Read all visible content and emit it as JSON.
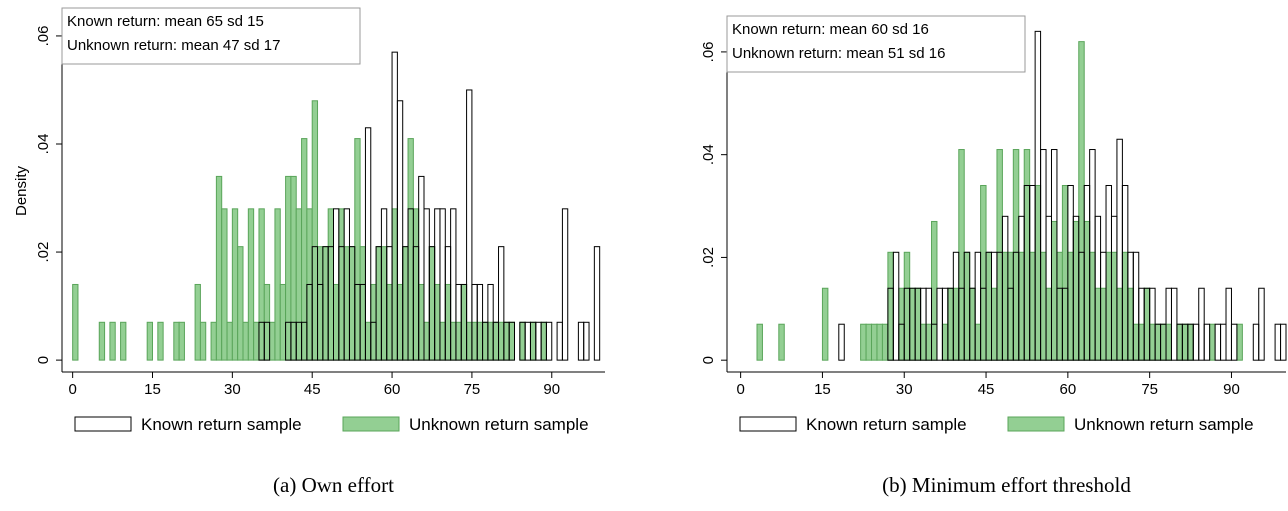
{
  "chart_data": [
    {
      "type": "histogram",
      "caption": "(a) Own effort",
      "y_label": "Density",
      "annotation": [
        "Known return: mean 65 sd 15",
        "Unknown return: mean 47 sd 17"
      ],
      "bins": [
        0,
        1,
        2,
        3,
        4,
        5,
        6,
        7,
        8,
        9,
        10,
        11,
        12,
        13,
        14,
        15,
        16,
        17,
        18,
        19,
        20,
        21,
        22,
        23,
        24,
        25,
        26,
        27,
        28,
        29,
        30,
        31,
        32,
        33,
        34,
        35,
        36,
        37,
        38,
        39,
        40,
        41,
        42,
        43,
        44,
        45,
        46,
        47,
        48,
        49,
        50,
        51,
        52,
        53,
        54,
        55,
        56,
        57,
        58,
        59,
        60,
        61,
        62,
        63,
        64,
        65,
        66,
        67,
        68,
        69,
        70,
        71,
        72,
        73,
        74,
        75,
        76,
        77,
        78,
        79,
        80,
        81,
        82,
        83,
        84,
        85,
        86,
        87,
        88,
        89,
        90,
        91,
        92,
        93,
        94,
        95,
        96,
        97,
        98,
        99,
        100
      ],
      "xlim": [
        -2,
        100
      ],
      "xticks": [
        0,
        15,
        30,
        45,
        60,
        75,
        90
      ],
      "ylim": [
        -0.0022,
        0.0648
      ],
      "yticks": [
        0,
        {
          "value": 0.02,
          "label": ".02"
        },
        {
          "value": 0.04,
          "label": ".04"
        },
        {
          "value": 0.06,
          "label": ".06"
        }
      ],
      "series": [
        {
          "name": "Unknown return sample",
          "color": "#93cf93",
          "edgecolor": "#5aa55a",
          "values": [
            0.014,
            0,
            0,
            0,
            0,
            0.007,
            0,
            0.007,
            0,
            0.007,
            0,
            0,
            0,
            0,
            0.007,
            0,
            0.007,
            0,
            0,
            0.007,
            0.007,
            0,
            0,
            0.014,
            0.007,
            0,
            0.007,
            0.034,
            0.028,
            0.007,
            0.028,
            0.021,
            0.007,
            0.028,
            0.007,
            0.028,
            0.014,
            0.007,
            0.028,
            0.014,
            0.034,
            0.034,
            0.028,
            0.041,
            0.028,
            0.048,
            0.021,
            0.021,
            0.028,
            0.014,
            0.028,
            0.021,
            0.021,
            0.041,
            0.021,
            0.007,
            0.014,
            0.021,
            0.021,
            0.014,
            0.028,
            0.014,
            0.021,
            0.041,
            0.028,
            0.014,
            0.007,
            0.021,
            0.014,
            0.007,
            0.014,
            0.007,
            0.007,
            0.014,
            0.007,
            0.007,
            0.007,
            0.007,
            0.007,
            0.007,
            0.007,
            0.007,
            0.007,
            0,
            0.007,
            0,
            0.007,
            0,
            0.007,
            0,
            0,
            0,
            0,
            0,
            0,
            0,
            0,
            0,
            0,
            0
          ]
        },
        {
          "name": "Known return sample",
          "color": "none",
          "edgecolor": "#000000",
          "values": [
            0,
            0,
            0,
            0,
            0,
            0,
            0,
            0,
            0,
            0,
            0,
            0,
            0,
            0,
            0,
            0,
            0,
            0,
            0,
            0,
            0,
            0,
            0,
            0,
            0,
            0,
            0,
            0,
            0,
            0,
            0,
            0,
            0,
            0,
            0,
            0.007,
            0.007,
            0,
            0,
            0,
            0.007,
            0.007,
            0.007,
            0.007,
            0.014,
            0.021,
            0.014,
            0.021,
            0.021,
            0.028,
            0.021,
            0.028,
            0.021,
            0.014,
            0.014,
            0.043,
            0.007,
            0.021,
            0.028,
            0.021,
            0.057,
            0.048,
            0.021,
            0.028,
            0.021,
            0.034,
            0.028,
            0.021,
            0.028,
            0.028,
            0.021,
            0.028,
            0.014,
            0.014,
            0.05,
            0.014,
            0.014,
            0.007,
            0.014,
            0.007,
            0.021,
            0.007,
            0.007,
            0,
            0.007,
            0.007,
            0.007,
            0.007,
            0.007,
            0.007,
            0,
            0.007,
            0.028,
            0,
            0,
            0.007,
            0.007,
            0,
            0.021,
            0
          ]
        }
      ]
    },
    {
      "type": "histogram",
      "caption": "(b) Minimum effort threshold",
      "annotation": [
        "Known return: mean 60 sd 16",
        "Unknown return: mean 51 sd 16"
      ],
      "bins": [
        0,
        1,
        2,
        3,
        4,
        5,
        6,
        7,
        8,
        9,
        10,
        11,
        12,
        13,
        14,
        15,
        16,
        17,
        18,
        19,
        20,
        21,
        22,
        23,
        24,
        25,
        26,
        27,
        28,
        29,
        30,
        31,
        32,
        33,
        34,
        35,
        36,
        37,
        38,
        39,
        40,
        41,
        42,
        43,
        44,
        45,
        46,
        47,
        48,
        49,
        50,
        51,
        52,
        53,
        54,
        55,
        56,
        57,
        58,
        59,
        60,
        61,
        62,
        63,
        64,
        65,
        66,
        67,
        68,
        69,
        70,
        71,
        72,
        73,
        74,
        75,
        76,
        77,
        78,
        79,
        80,
        81,
        82,
        83,
        84,
        85,
        86,
        87,
        88,
        89,
        90,
        91,
        92,
        93,
        94,
        95,
        96,
        97,
        98,
        99,
        100
      ],
      "xlim": [
        -2.5,
        100
      ],
      "xticks": [
        0,
        15,
        30,
        45,
        60,
        75,
        90
      ],
      "ylim": [
        -0.0023,
        0.0666
      ],
      "yticks": [
        0,
        {
          "value": 0.02,
          "label": ".02"
        },
        {
          "value": 0.04,
          "label": ".04"
        },
        {
          "value": 0.06,
          "label": ".06"
        }
      ],
      "series": [
        {
          "name": "Unknown return sample",
          "color": "#93cf93",
          "edgecolor": "#5aa55a",
          "values": [
            0,
            0,
            0,
            0.007,
            0,
            0,
            0,
            0.007,
            0,
            0,
            0,
            0,
            0,
            0,
            0,
            0.014,
            0,
            0,
            0,
            0,
            0,
            0,
            0.007,
            0.007,
            0.007,
            0.007,
            0.007,
            0.021,
            0,
            0.014,
            0.021,
            0.014,
            0.014,
            0.007,
            0.007,
            0.027,
            0,
            0.007,
            0.014,
            0.014,
            0.041,
            0.021,
            0.014,
            0.007,
            0.034,
            0.021,
            0.014,
            0.041,
            0.021,
            0.021,
            0.041,
            0.021,
            0.041,
            0.021,
            0.034,
            0.021,
            0.014,
            0.027,
            0.021,
            0.034,
            0.021,
            0.027,
            0.062,
            0.027,
            0.021,
            0.014,
            0.014,
            0.021,
            0.021,
            0.014,
            0.021,
            0.014,
            0.007,
            0.007,
            0.014,
            0.007,
            0.007,
            0.007,
            0.007,
            0,
            0.007,
            0.007,
            0.007,
            0,
            0,
            0,
            0.007,
            0,
            0,
            0,
            0,
            0.007,
            0,
            0,
            0,
            0,
            0,
            0,
            0,
            0
          ]
        },
        {
          "name": "Known return sample",
          "color": "none",
          "edgecolor": "#000000",
          "values": [
            0,
            0,
            0,
            0,
            0,
            0,
            0,
            0,
            0,
            0,
            0,
            0,
            0,
            0,
            0,
            0,
            0,
            0,
            0.007,
            0,
            0,
            0,
            0,
            0,
            0,
            0,
            0,
            0.014,
            0.021,
            0.007,
            0.014,
            0.014,
            0.014,
            0.014,
            0.014,
            0.007,
            0.014,
            0.014,
            0.014,
            0.021,
            0.014,
            0.021,
            0.014,
            0.021,
            0.014,
            0.021,
            0.021,
            0.021,
            0.028,
            0.014,
            0.021,
            0.028,
            0.034,
            0.034,
            0.064,
            0.041,
            0.028,
            0.041,
            0.014,
            0.014,
            0.034,
            0.028,
            0.021,
            0.034,
            0.041,
            0.028,
            0.021,
            0.034,
            0.028,
            0.043,
            0.034,
            0.021,
            0.021,
            0.014,
            0.014,
            0.014,
            0.007,
            0.007,
            0.014,
            0.014,
            0.007,
            0.007,
            0.007,
            0.007,
            0.014,
            0.007,
            0,
            0.007,
            0.007,
            0.014,
            0.007,
            0,
            0,
            0,
            0.007,
            0.014,
            0,
            0,
            0.007,
            0.007
          ]
        }
      ]
    }
  ]
}
